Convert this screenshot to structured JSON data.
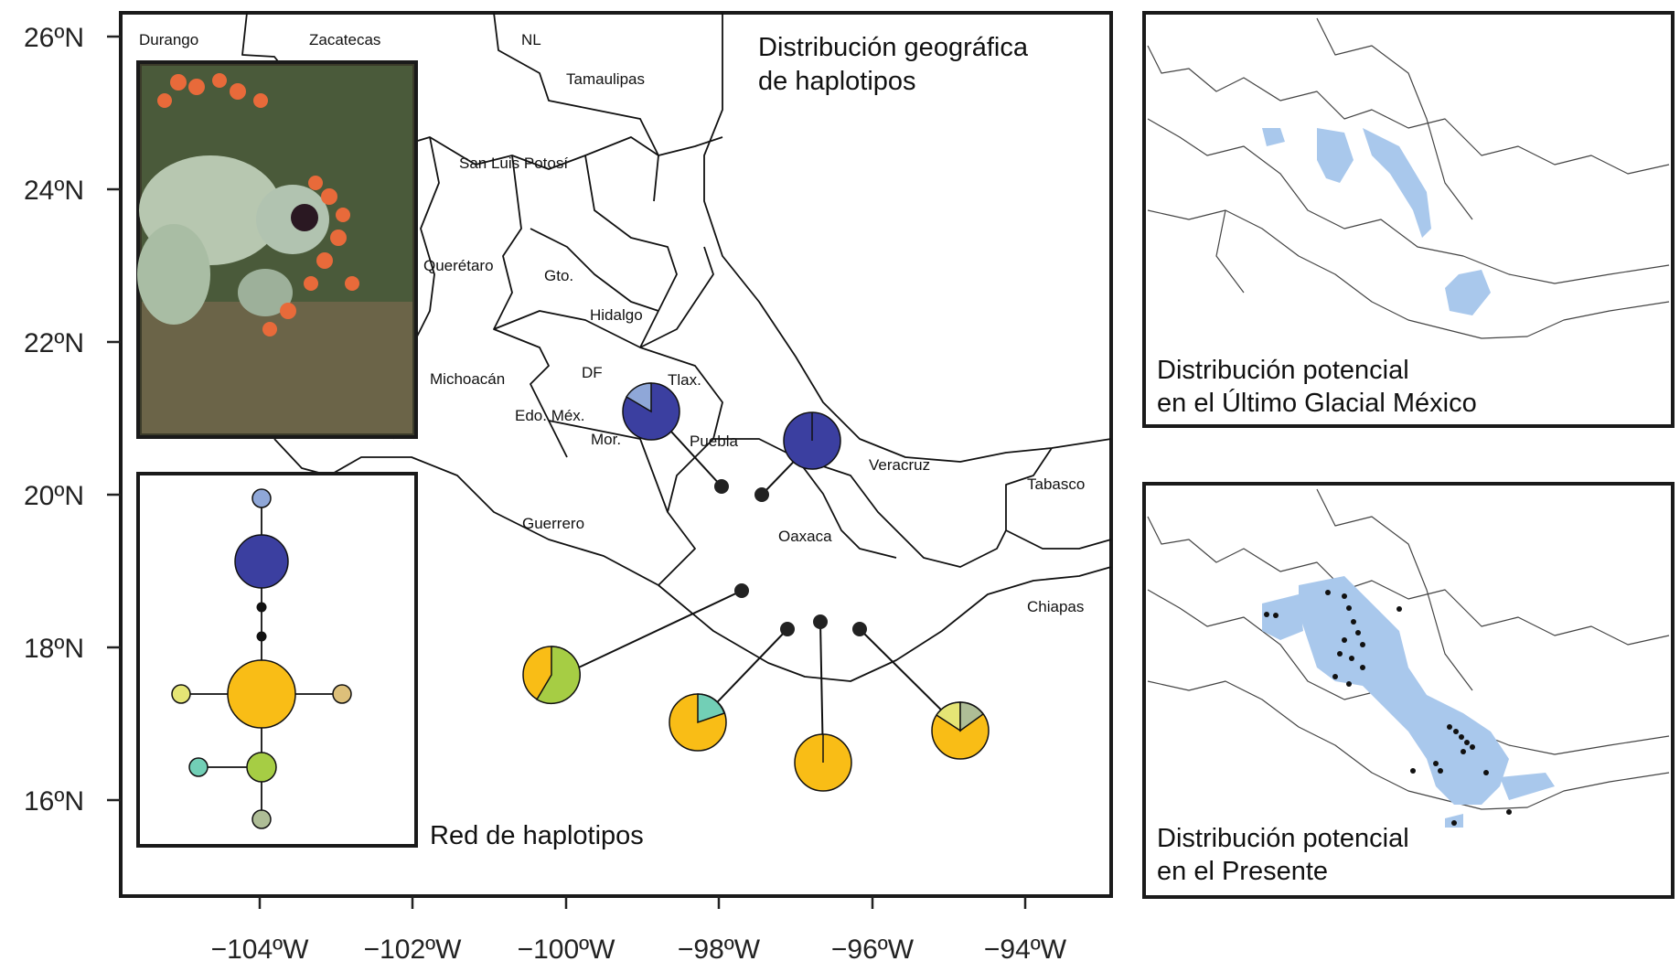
{
  "main_map": {
    "title_line1": "Distribución geográfica",
    "title_line2": "de haplotipos",
    "y_ticks": [
      "26ºN",
      "24ºN",
      "22ºN",
      "20ºN",
      "18ºN",
      "16ºN"
    ],
    "x_ticks": [
      "−104ºW",
      "−102ºW",
      "−100ºW",
      "−98ºW",
      "−96ºW",
      "−94ºW"
    ],
    "states": {
      "durango": "Durango",
      "zacatecas": "Zacatecas",
      "nl": "NL",
      "tamaulipas": "Tamaulipas",
      "slp": "San Luis Potosí",
      "queretaro": "Querétaro",
      "gto": "Gto.",
      "hidalgo": "Hidalgo",
      "michoacan": "Michoacán",
      "df": "DF",
      "tlax": "Tlax.",
      "edomex": "Edo. Méx.",
      "mor": "Mor.",
      "puebla": "Puebla",
      "veracruz": "Veracruz",
      "tabasco": "Tabasco",
      "guerrero": "Guerrero",
      "oaxaca": "Oaxaca",
      "chiapas": "Chiapas"
    }
  },
  "haplotype_network": {
    "label": "Red de haplotipos"
  },
  "lgm_panel": {
    "line1": "Distribución potencial",
    "line2": "en el Último Glacial México"
  },
  "present_panel": {
    "line1": "Distribución potencial",
    "line2": "en el Presente"
  },
  "colors": {
    "dark_blue": "#3b3fa0",
    "light_blue": "#8fa7d8",
    "yellow": "#f9bd16",
    "green": "#a6cd44",
    "teal": "#72cfb6",
    "pale_yellow": "#e5e575",
    "sage": "#aebd96",
    "tan": "#ddc07a",
    "suitability_blue": "#a9c8ec"
  }
}
